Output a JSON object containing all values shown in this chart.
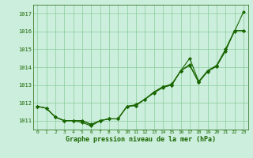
{
  "x": [
    0,
    1,
    2,
    3,
    4,
    5,
    6,
    7,
    8,
    9,
    10,
    11,
    12,
    13,
    14,
    15,
    16,
    17,
    18,
    19,
    20,
    21,
    22,
    23
  ],
  "series1": [
    1011.8,
    1011.7,
    1011.2,
    1011.0,
    1011.0,
    1010.9,
    1010.7,
    1011.0,
    1011.1,
    1011.1,
    1011.8,
    1011.9,
    1012.2,
    1012.6,
    1012.9,
    1013.0,
    1013.8,
    1014.5,
    1013.2,
    1013.8,
    1014.1,
    1015.0,
    1016.0,
    1017.1
  ],
  "series2": [
    1011.8,
    1011.7,
    1011.2,
    1011.0,
    1011.0,
    1011.0,
    1010.8,
    1011.0,
    1011.1,
    1011.1,
    1011.8,
    1011.85,
    1012.2,
    1012.55,
    1012.85,
    1013.0,
    1013.8,
    1014.15,
    1013.15,
    1013.8,
    1014.05,
    1014.9,
    1016.05,
    1016.05
  ],
  "series3": [
    1011.8,
    1011.7,
    1011.2,
    1011.0,
    1011.0,
    1011.0,
    1010.75,
    1011.0,
    1011.1,
    1011.1,
    1011.8,
    1011.85,
    1012.2,
    1012.6,
    1012.9,
    1013.05,
    1013.8,
    1014.1,
    1013.15,
    1013.75,
    1014.05,
    1015.0,
    1016.05,
    1016.05
  ],
  "line_color": "#1a6600",
  "bg_color": "#cceedd",
  "grid_color": "#88cc99",
  "xlabel": "Graphe pression niveau de la mer (hPa)",
  "ylim_min": 1010.5,
  "ylim_max": 1017.5,
  "yticks": [
    1011,
    1012,
    1013,
    1014,
    1015,
    1016,
    1017
  ],
  "xticks": [
    0,
    1,
    2,
    3,
    4,
    5,
    6,
    7,
    8,
    9,
    10,
    11,
    12,
    13,
    14,
    15,
    16,
    17,
    18,
    19,
    20,
    21,
    22,
    23
  ],
  "marker": "D",
  "marker_size": 2.0,
  "linewidth": 0.8
}
